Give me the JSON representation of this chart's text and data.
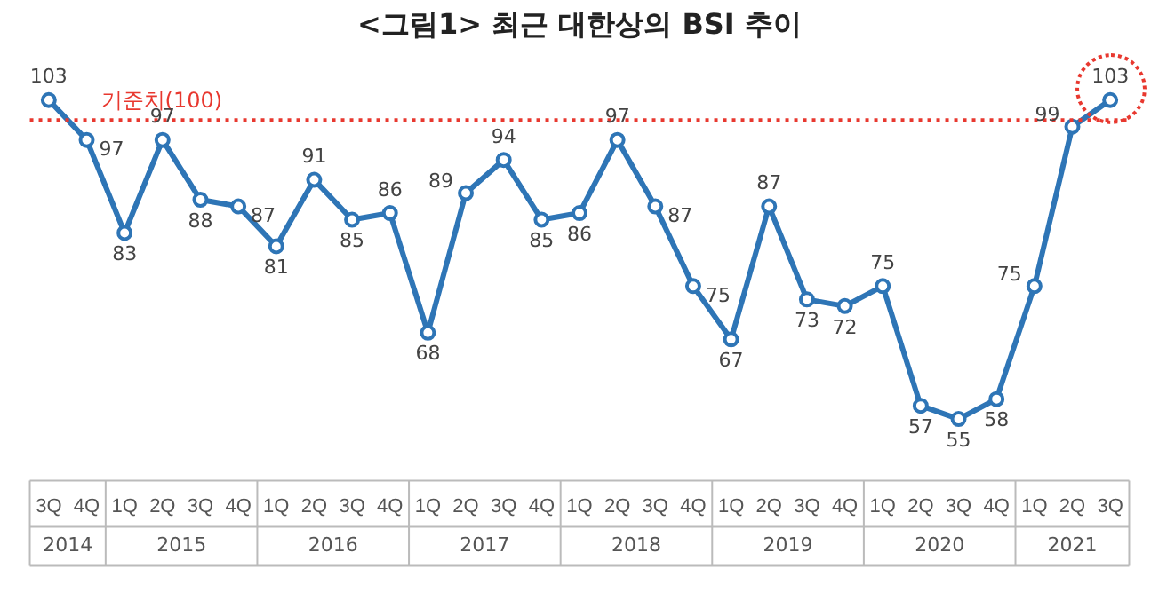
{
  "chart_data": {
    "type": "line",
    "title": "<그림1> 최근 대한상의 BSI 추이",
    "categories": [
      "3Q",
      "4Q",
      "1Q",
      "2Q",
      "3Q",
      "4Q",
      "1Q",
      "2Q",
      "3Q",
      "4Q",
      "1Q",
      "2Q",
      "3Q",
      "4Q",
      "1Q",
      "2Q",
      "3Q",
      "4Q",
      "1Q",
      "2Q",
      "3Q",
      "4Q",
      "1Q",
      "2Q",
      "3Q",
      "4Q",
      "1Q",
      "2Q",
      "3Q"
    ],
    "series": [
      {
        "color": "#2e75b6",
        "values": [
          103,
          97,
          83,
          97,
          88,
          87,
          81,
          91,
          85,
          86,
          68,
          89,
          94,
          85,
          86,
          97,
          87,
          75,
          67,
          87,
          73,
          72,
          75,
          57,
          55,
          58,
          75,
          99,
          103
        ]
      }
    ],
    "annotations": [
      "2014",
      "2015",
      "2016",
      "2017",
      "2018",
      "2019",
      "2020",
      "2021"
    ],
    "ref_lines": [
      {
        "axis": "y",
        "value": 100,
        "label": "기준치(100)",
        "color": "#e8382f",
        "line_style": "dotted"
      }
    ],
    "data_labels": true,
    "marker": "circle",
    "line_style": "solid",
    "grid": false,
    "legend": false
  }
}
